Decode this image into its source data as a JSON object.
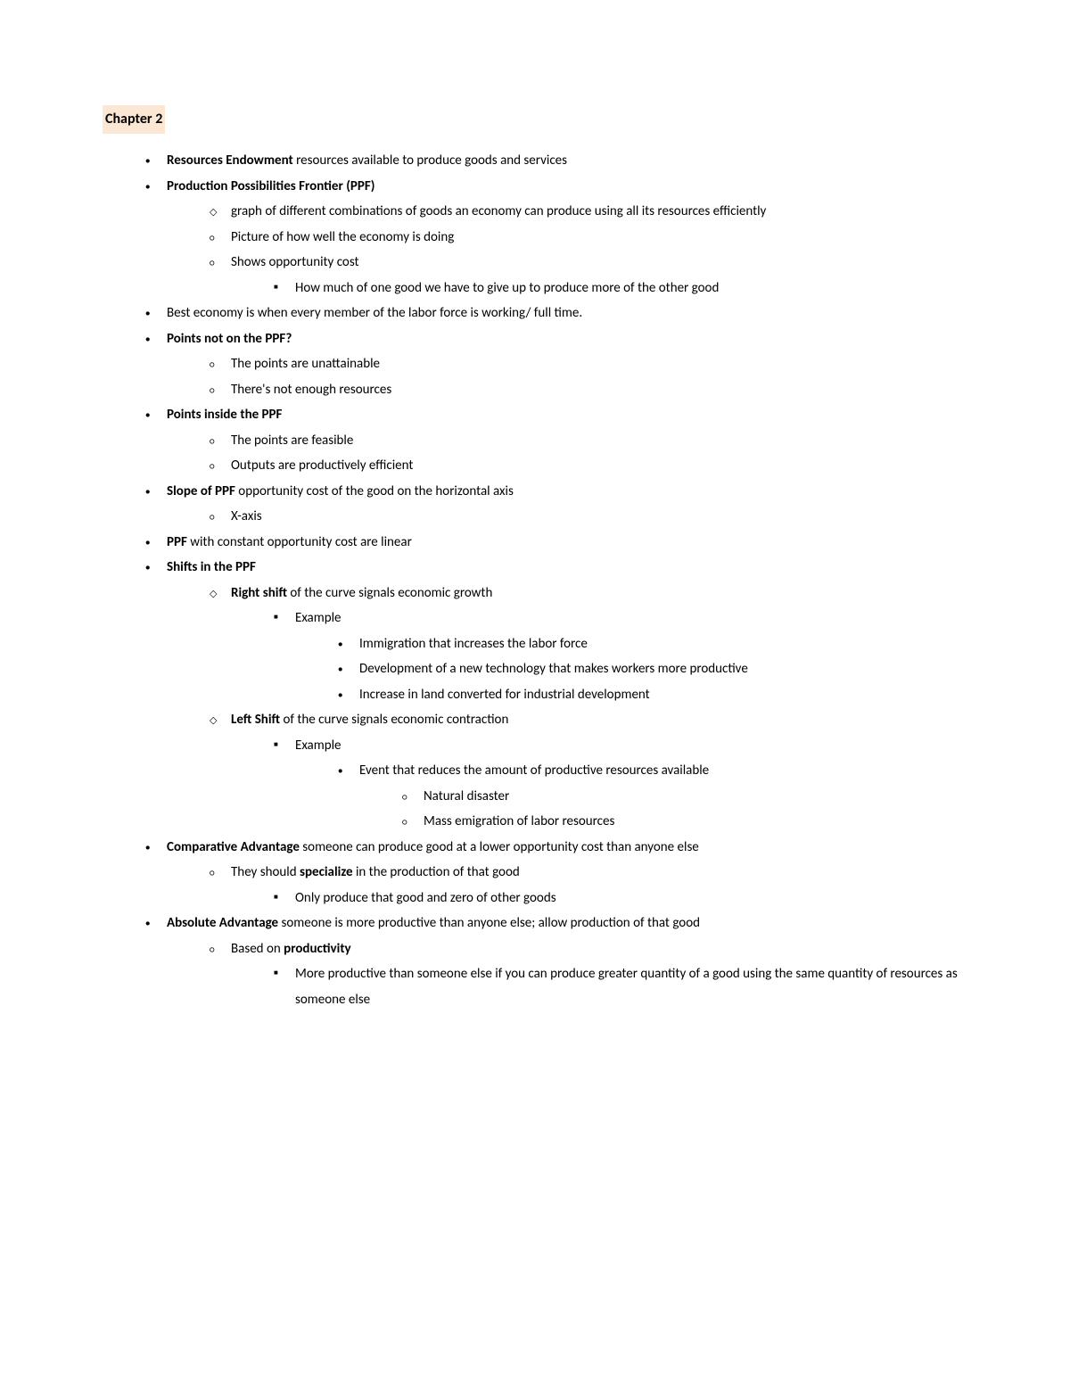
{
  "title": "Chapter 2",
  "items": {
    "i1_bold": "Resources Endowment",
    "i1_rest": " resources available to produce goods and services",
    "i2_bold": "Production Possibilities Frontier (PPF)",
    "i2a": "graph of different combinations of goods an economy can produce using all its resources efficiently",
    "i2b": "Picture of how well the economy is doing",
    "i2c": "Shows opportunity cost",
    "i2c1": "How much of one good we have to give up to produce more of the other good",
    "i3": "Best economy is when every member of the labor force is working/ full time.",
    "i4_bold": "Points not on the PPF?",
    "i4a": "The points are unattainable",
    "i4b": "There's not enough resources",
    "i5_bold": "Points inside the PPF",
    "i5a": "The points are feasible",
    "i5b": "Outputs are productively efficient",
    "i6_bold": "Slope of PPF",
    "i6_rest": " opportunity cost of the good on the horizontal axis",
    "i6a": "X-axis",
    "i7_bold": "PPF",
    "i7_rest": " with constant opportunity cost are linear",
    "i8_bold": "Shifts in the PPF",
    "i8a_bold": "Right shift",
    "i8a_rest": " of the curve signals economic growth",
    "i8a1": "Example",
    "i8a1a": "Immigration that increases the labor force",
    "i8a1b": "Development of a new technology that makes workers more productive",
    "i8a1c": "Increase in land converted for industrial development",
    "i8b_bold": "Left Shift",
    "i8b_rest": " of the curve signals economic contraction",
    "i8b1": "Example",
    "i8b1a": "Event that reduces the amount of productive resources available",
    "i8b1a1": "Natural disaster",
    "i8b1a2": "Mass emigration of labor resources",
    "i9_bold": "Comparative Advantage",
    "i9_rest": " someone can produce good at a lower opportunity cost than anyone else",
    "i9a_pre": "They should ",
    "i9a_bold": "specialize",
    "i9a_post": " in the production of that good",
    "i9a1": "Only produce that good and zero of other goods",
    "i10_bold": "Absolute Advantage",
    "i10_rest": " someone is more productive than anyone else; allow production of that good",
    "i10a_pre": "Based on ",
    "i10a_bold": "productivity",
    "i10a1": "More productive than someone else if you can produce greater quantity of a good using the same quantity of resources as someone else"
  }
}
